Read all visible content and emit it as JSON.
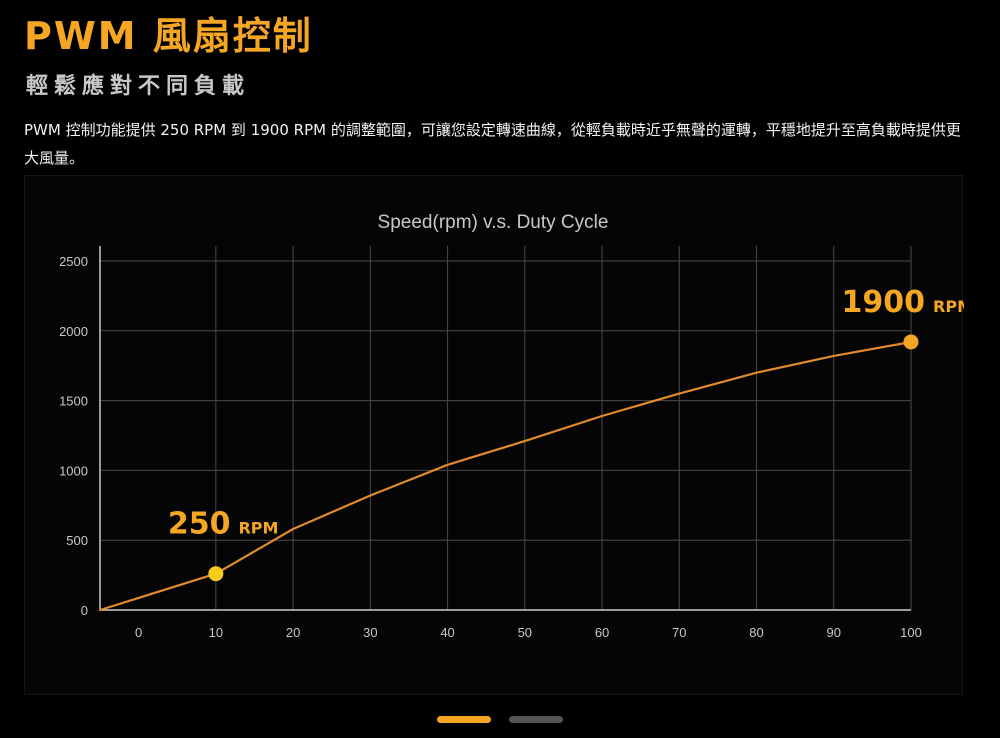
{
  "header": {
    "title": "PWM 風扇控制",
    "subtitle": "輕鬆應對不同負載",
    "description": "PWM 控制功能提供 250 RPM 到 1900 RPM 的調整範圍，可讓您設定轉速曲線，從輕負載時近乎無聲的運轉，平穩地提升至高負載時提供更大風量。"
  },
  "colors": {
    "accent": "#F5A623",
    "curve": "#E08A2E",
    "low_marker": "#F7CB1C",
    "high_marker": "#F5A623",
    "grid": "#4a4a4a",
    "axis": "#cccccc",
    "text": "#ffffff",
    "muted_text": "#c8c8c8",
    "pager_active": "#F5A623",
    "pager_inactive": "#555555"
  },
  "chart_data": {
    "type": "line",
    "title": "Speed(rpm)  v.s.  Duty Cycle",
    "xlabel": "",
    "ylabel": "",
    "xlim": [
      -5,
      100
    ],
    "ylim": [
      0,
      2500
    ],
    "x_ticks": [
      0,
      10,
      20,
      30,
      40,
      50,
      60,
      70,
      80,
      90,
      100
    ],
    "y_ticks": [
      0,
      500,
      1000,
      1500,
      2000,
      2500
    ],
    "x_tick_labels": [
      "0",
      "10",
      "20",
      "30",
      "40",
      "50",
      "60",
      "70",
      "80",
      "90",
      "100"
    ],
    "y_tick_labels": [
      "0",
      "500",
      "1000",
      "1500",
      "2000",
      "2500"
    ],
    "grid": true,
    "legend": "none",
    "series": [
      {
        "name": "Speed (rpm)",
        "x": [
          -5,
          10,
          20,
          30,
          40,
          50,
          60,
          70,
          80,
          90,
          100
        ],
        "y": [
          0,
          260,
          580,
          820,
          1040,
          1210,
          1390,
          1550,
          1700,
          1820,
          1920
        ]
      }
    ],
    "annotations": [
      {
        "x": 10,
        "y": 260,
        "value": "250",
        "unit": "RPM",
        "label_position": "above"
      },
      {
        "x": 100,
        "y": 1920,
        "value": "1900",
        "unit": "RPM",
        "label_position": "above-left"
      }
    ]
  },
  "pager": {
    "slides": [
      {
        "active": true
      },
      {
        "active": false
      }
    ]
  }
}
